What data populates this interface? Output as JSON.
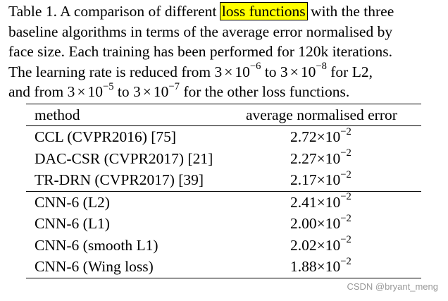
{
  "caption": {
    "line1_before": "Table 1. A comparison of different ",
    "line1_highlight": "loss functions",
    "line1_after": " with the three",
    "line2": "baseline algorithms in terms of the average error normalised by",
    "line3": "face size.  Each training has been performed for 120k iterations.",
    "line4_a": "The learning rate is reduced from 3",
    "line4_exp1": "−6",
    "line4_b": " to 3",
    "line4_exp2": "−8",
    "line4_c": " for L2,",
    "line5_a": "and from 3",
    "line5_exp1": "−5",
    "line5_b": " to 3",
    "line5_exp2": "−7",
    "line5_c": " for the other loss functions.",
    "times_symbol": "×",
    "ten": "10"
  },
  "table": {
    "columns": [
      "method",
      "average normalised error"
    ],
    "group1": [
      {
        "method": "CCL (CVPR2016) [75]",
        "mantissa": "2.72",
        "exponent": "−2"
      },
      {
        "method": "DAC-CSR (CVPR2017) [21]",
        "mantissa": "2.27",
        "exponent": "−2"
      },
      {
        "method": "TR-DRN (CVPR2017) [39]",
        "mantissa": "2.17",
        "exponent": "−2"
      }
    ],
    "group2": [
      {
        "method": "CNN-6 (L2)",
        "mantissa": "2.41",
        "exponent": "−2"
      },
      {
        "method": "CNN-6 (L1)",
        "mantissa": "2.00",
        "exponent": "−2"
      },
      {
        "method": "CNN-6 (smooth L1)",
        "mantissa": "2.02",
        "exponent": "−2"
      },
      {
        "method": "CNN-6 (Wing loss)",
        "mantissa": "1.88",
        "exponent": "−2"
      }
    ],
    "times_symbol": "×",
    "ten": "10"
  },
  "watermark": "CSDN @bryant_meng"
}
